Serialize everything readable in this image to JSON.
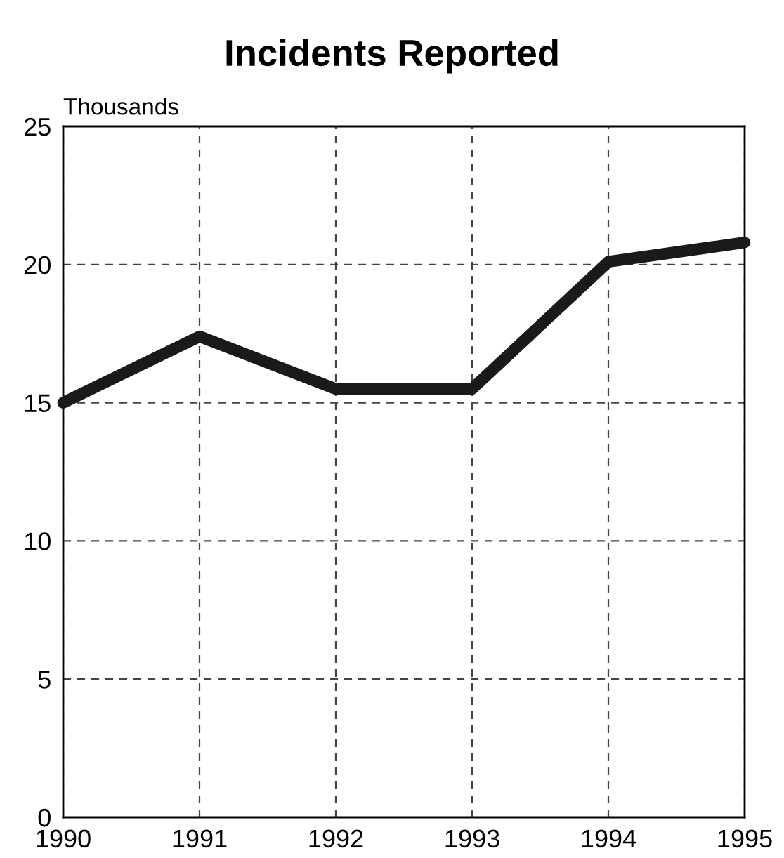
{
  "chart_data": {
    "type": "line",
    "title": "Incidents Reported",
    "ylabel": "Thousands",
    "x": [
      1990,
      1991,
      1992,
      1993,
      1994,
      1995
    ],
    "series": [
      {
        "color": "#1a1a1a",
        "values": [
          15.0,
          17.4,
          15.5,
          15.5,
          20.1,
          20.8
        ]
      }
    ],
    "xlim": [
      1990,
      1995
    ],
    "xticks": [
      1990,
      1991,
      1992,
      1993,
      1994,
      1995
    ],
    "ylim": [
      0,
      25
    ],
    "yticks": [
      0,
      5,
      10,
      15,
      20,
      25
    ],
    "grid": true,
    "line_style": "solid",
    "marker": "none",
    "legend": false
  }
}
